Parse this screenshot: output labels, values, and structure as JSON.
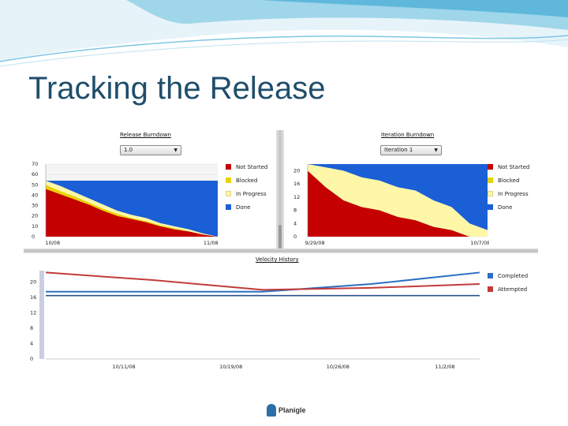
{
  "slide": {
    "title": "Tracking the Release"
  },
  "release_burndown": {
    "title": "Release Burndown",
    "dropdown_value": "1.0",
    "legend": [
      "Not Started",
      "Blocked",
      "In Progress",
      "Done"
    ]
  },
  "iteration_burndown": {
    "title": "Iteration Burndown",
    "dropdown_value": "Iteration 1",
    "legend": [
      "Not Started",
      "Blocked",
      "In Progress",
      "Done"
    ]
  },
  "velocity_history": {
    "title": "Velocity History",
    "legend": [
      "Completed",
      "Attempted"
    ]
  },
  "colors": {
    "not_started": "#c40000",
    "blocked": "#e8d200",
    "in_progress": "#fff7a8",
    "done": "#1a5fd6",
    "completed": "#2b6fc4",
    "attempted": "#c23b3b",
    "baseline": "#2b4f8f",
    "title": "#1f4e6b"
  },
  "chart_data": [
    {
      "type": "area",
      "title": "Release Burndown",
      "x_tick_labels": [
        "10/08",
        "11/08"
      ],
      "y_ticks": [
        0,
        10,
        20,
        30,
        40,
        50,
        60,
        70
      ],
      "ylim": [
        0,
        70
      ],
      "x": [
        0,
        1,
        2,
        3,
        4,
        5,
        6,
        7,
        8,
        9,
        10,
        11,
        12
      ],
      "series": [
        {
          "name": "Not Started",
          "values": [
            46,
            41,
            36,
            31,
            25,
            20,
            17,
            14,
            10,
            7,
            5,
            2,
            0
          ]
        },
        {
          "name": "Blocked",
          "values": [
            4,
            3,
            3,
            2,
            2,
            2,
            1,
            1,
            1,
            1,
            0,
            0,
            0
          ]
        },
        {
          "name": "In Progress",
          "values": [
            4,
            5,
            4,
            4,
            4,
            3,
            3,
            3,
            2,
            2,
            2,
            1,
            0
          ]
        },
        {
          "name": "Done",
          "values": [
            0,
            5,
            11,
            17,
            23,
            29,
            33,
            36,
            41,
            44,
            47,
            51,
            54
          ]
        }
      ]
    },
    {
      "type": "area",
      "title": "Iteration Burndown",
      "x_tick_labels": [
        "9/29/08",
        "10/7/08"
      ],
      "y_ticks": [
        0,
        4,
        8,
        12,
        16,
        20
      ],
      "ylim": [
        0,
        22
      ],
      "x": [
        0,
        1,
        2,
        3,
        4,
        5,
        6,
        7,
        8,
        9,
        10
      ],
      "series": [
        {
          "name": "Not Started",
          "values": [
            20,
            15,
            11,
            9,
            8,
            6,
            5,
            3,
            2,
            0,
            0
          ]
        },
        {
          "name": "Blocked",
          "values": [
            0,
            0,
            0,
            0,
            0,
            0,
            0,
            0,
            0,
            0,
            0
          ]
        },
        {
          "name": "In Progress",
          "values": [
            2,
            6,
            9,
            9,
            9,
            9,
            9,
            8,
            7,
            4,
            2
          ]
        },
        {
          "name": "Done",
          "values": [
            0,
            1,
            2,
            4,
            5,
            7,
            8,
            11,
            13,
            18,
            20
          ]
        }
      ]
    },
    {
      "type": "line",
      "title": "Velocity History",
      "x_tick_labels": [
        "10/11/08",
        "10/19/08",
        "10/26/08",
        "11/2/08"
      ],
      "y_ticks": [
        0,
        4,
        8,
        12,
        16,
        20
      ],
      "ylim": [
        0,
        23
      ],
      "x": [
        0,
        1,
        2,
        3,
        4
      ],
      "series": [
        {
          "name": "Completed",
          "values": [
            17.5,
            17.5,
            17.5,
            19.5,
            22.5
          ]
        },
        {
          "name": "Attempted",
          "values": [
            22.5,
            20.5,
            18.0,
            18.5,
            19.5
          ]
        }
      ]
    }
  ]
}
